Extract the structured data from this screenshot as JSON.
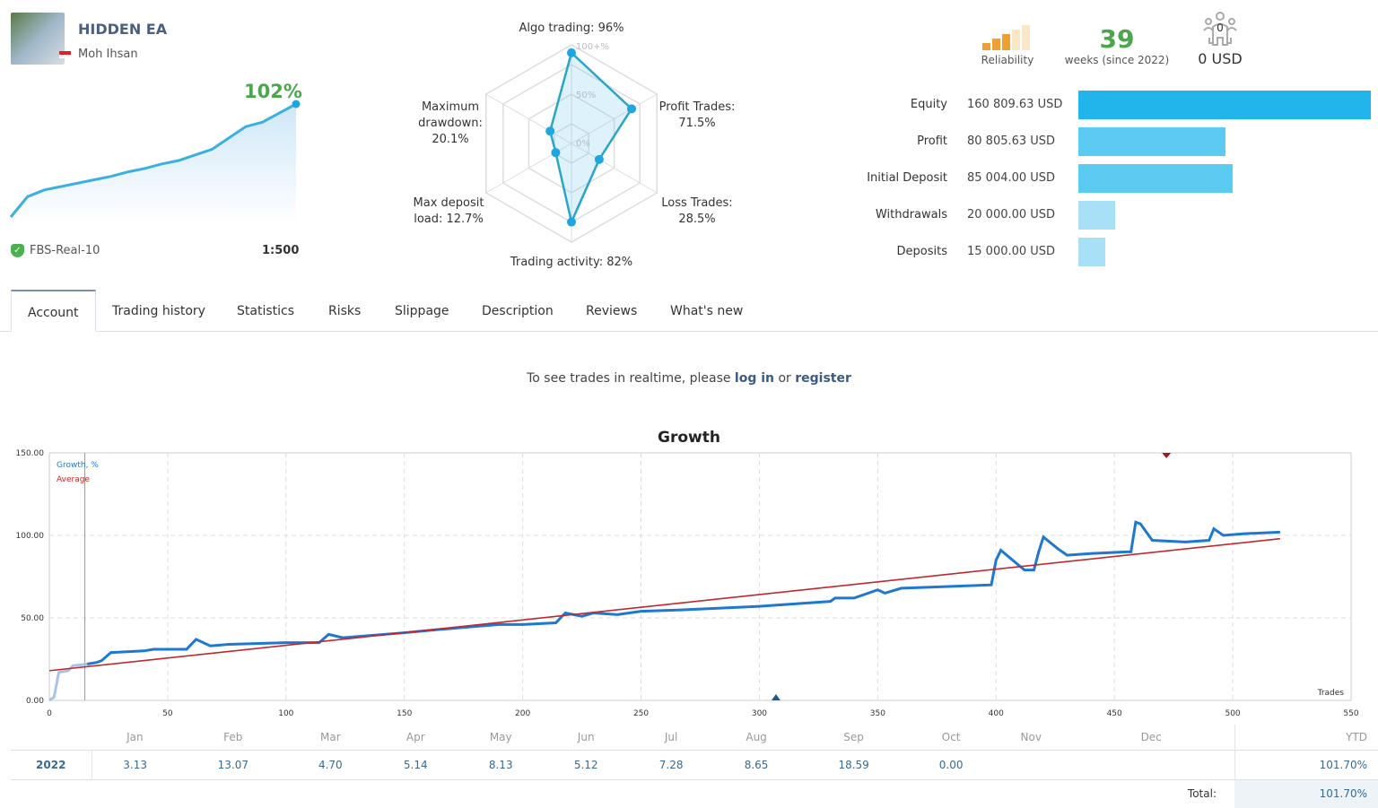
{
  "header": {
    "title": "HIDDEN EA",
    "owner": "Moh Ihsan",
    "growth": "102%",
    "server": "FBS-Real-10",
    "leverage": "1:500"
  },
  "radar": {
    "scale_labels": [
      "100+%",
      "50%",
      "0%"
    ],
    "axes": [
      {
        "label": "Algo trading: 96%",
        "value": 96
      },
      {
        "label": "Profit Trades:\n71.5%",
        "value": 71.5
      },
      {
        "label": "Loss Trades:\n28.5%",
        "value": 28.5
      },
      {
        "label": "Trading activity: 82%",
        "value": 82
      },
      {
        "label": "Max deposit\nload: 12.7%",
        "value": 12.7
      },
      {
        "label": "Maximum\ndrawdown:\n20.1%",
        "value": 20.1
      }
    ]
  },
  "stats": {
    "reliability_label": "Reliability",
    "reliability_level": 3,
    "reliability_max": 5,
    "weeks": "39",
    "weeks_label": "weeks (since 2022)",
    "subscribers": "0",
    "subscribers_value": "0 USD"
  },
  "balances": [
    {
      "label": "Equity",
      "value": "160 809.63 USD",
      "amount": 160809.63,
      "color": "#22b5ec"
    },
    {
      "label": "Profit",
      "value": "80 805.63 USD",
      "amount": 80805.63,
      "color": "#5ccbf2"
    },
    {
      "label": "Initial Deposit",
      "value": "85 004.00 USD",
      "amount": 85004,
      "color": "#5ccbf2"
    },
    {
      "label": "Withdrawals",
      "value": "20 000.00 USD",
      "amount": 20000,
      "color": "#a8e0f7"
    },
    {
      "label": "Deposits",
      "value": "15 000.00 USD",
      "amount": 15000,
      "color": "#a8e0f7"
    }
  ],
  "tabs": [
    "Account",
    "Trading history",
    "Statistics",
    "Risks",
    "Slippage",
    "Description",
    "Reviews",
    "What's new"
  ],
  "active_tab": 0,
  "notice": {
    "prefix": "To see trades in realtime, please ",
    "login": "log in",
    "mid": " or ",
    "register": "register"
  },
  "chart_data": {
    "type": "line",
    "title": "Growth",
    "xlabel": "Trades",
    "ylabel": "",
    "xlim": [
      0,
      550
    ],
    "ylim": [
      0,
      150
    ],
    "grid": true,
    "legend": "top-left",
    "xticks": [
      "0",
      "50",
      "100",
      "150",
      "200",
      "250",
      "300",
      "350",
      "400",
      "450",
      "500",
      "550"
    ],
    "yticks": [
      "0.00",
      "50.00",
      "100.00",
      "150.00"
    ],
    "series": [
      {
        "name": "Growth, %",
        "color": "#1e78d0",
        "points": [
          [
            0,
            0
          ],
          [
            2,
            2
          ],
          [
            4,
            17
          ],
          [
            8,
            18
          ],
          [
            10,
            21
          ],
          [
            16,
            22
          ],
          [
            20,
            23
          ],
          [
            22,
            24
          ],
          [
            26,
            29
          ],
          [
            40,
            30
          ],
          [
            44,
            31
          ],
          [
            58,
            31
          ],
          [
            62,
            37
          ],
          [
            68,
            33
          ],
          [
            76,
            34
          ],
          [
            100,
            35
          ],
          [
            114,
            35
          ],
          [
            118,
            40
          ],
          [
            124,
            38
          ],
          [
            150,
            41
          ],
          [
            165,
            43
          ],
          [
            190,
            46
          ],
          [
            200,
            46
          ],
          [
            214,
            47
          ],
          [
            218,
            53
          ],
          [
            225,
            51
          ],
          [
            230,
            53
          ],
          [
            240,
            52
          ],
          [
            250,
            54
          ],
          [
            270,
            55
          ],
          [
            300,
            57
          ],
          [
            310,
            58
          ],
          [
            330,
            60
          ],
          [
            332,
            62
          ],
          [
            340,
            62
          ],
          [
            350,
            67
          ],
          [
            353,
            65
          ],
          [
            360,
            68
          ],
          [
            380,
            69
          ],
          [
            398,
            70
          ],
          [
            400,
            85
          ],
          [
            402,
            91
          ],
          [
            412,
            79
          ],
          [
            416,
            79
          ],
          [
            418,
            90
          ],
          [
            420,
            99
          ],
          [
            426,
            92
          ],
          [
            430,
            88
          ],
          [
            440,
            89
          ],
          [
            455,
            90
          ],
          [
            457,
            90
          ],
          [
            459,
            108
          ],
          [
            461,
            107
          ],
          [
            466,
            97
          ],
          [
            480,
            96
          ],
          [
            490,
            97
          ],
          [
            492,
            104
          ],
          [
            496,
            100
          ],
          [
            505,
            101
          ],
          [
            520,
            102
          ]
        ]
      },
      {
        "name": "Average",
        "color": "#c0282d",
        "points": [
          [
            0,
            18
          ],
          [
            520,
            98
          ]
        ]
      }
    ],
    "markers": [
      {
        "x": 307,
        "type": "up",
        "color": "#1f5a8a"
      },
      {
        "x": 472,
        "type": "down",
        "color": "#a01818"
      }
    ]
  },
  "mini_chart": {
    "points": [
      0,
      18,
      24,
      27,
      30,
      33,
      36,
      40,
      43,
      47,
      50,
      55,
      60,
      70,
      80,
      84,
      92,
      100
    ]
  },
  "months": {
    "headers": [
      "Jan",
      "Feb",
      "Mar",
      "Apr",
      "May",
      "Jun",
      "Jul",
      "Aug",
      "Sep",
      "Oct",
      "Nov",
      "Dec",
      "YTD"
    ],
    "rows": [
      {
        "year": "2022",
        "values": [
          "3.13",
          "13.07",
          "4.70",
          "5.14",
          "8.13",
          "5.12",
          "7.28",
          "8.65",
          "18.59",
          "0.00",
          "",
          "",
          ""
        ],
        "ytd": "101.70%"
      }
    ],
    "total_label": "Total:",
    "total": "101.70%"
  }
}
